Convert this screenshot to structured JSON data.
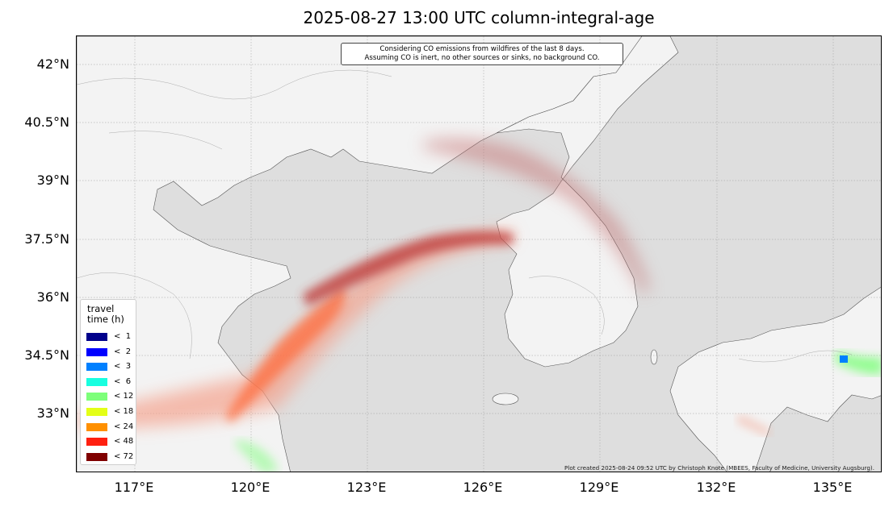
{
  "title": "2025-08-27 13:00 UTC column-integral-age",
  "note": {
    "line1": "Considering CO emissions from wildfires of the last 8 days.",
    "line2": "Assuming CO is inert, no other sources or sinks, no background CO."
  },
  "axes": {
    "lat_ticks": [
      "42°N",
      "40.5°N",
      "39°N",
      "37.5°N",
      "36°N",
      "34.5°N",
      "33°N"
    ],
    "lon_ticks": [
      "117°E",
      "120°E",
      "123°E",
      "126°E",
      "129°E",
      "132°E",
      "135°E"
    ]
  },
  "legend": {
    "title_line1": "travel",
    "title_line2": "time (h)",
    "items": [
      {
        "label": "<  1",
        "color": "#00008b"
      },
      {
        "label": "<  2",
        "color": "#0000ff"
      },
      {
        "label": "<  3",
        "color": "#0080ff"
      },
      {
        "label": "<  6",
        "color": "#18ffe0"
      },
      {
        "label": "< 12",
        "color": "#7dff7a"
      },
      {
        "label": "< 18",
        "color": "#e4ff17"
      },
      {
        "label": "< 24",
        "color": "#ff9000"
      },
      {
        "label": "< 48",
        "color": "#ff2010"
      },
      {
        "label": "< 72",
        "color": "#800000"
      }
    ]
  },
  "credit": "Plot created 2025-08-24 09:52 UTC by Christoph Knote (MBEES, Faculty of Medicine, University Augsburg)."
}
